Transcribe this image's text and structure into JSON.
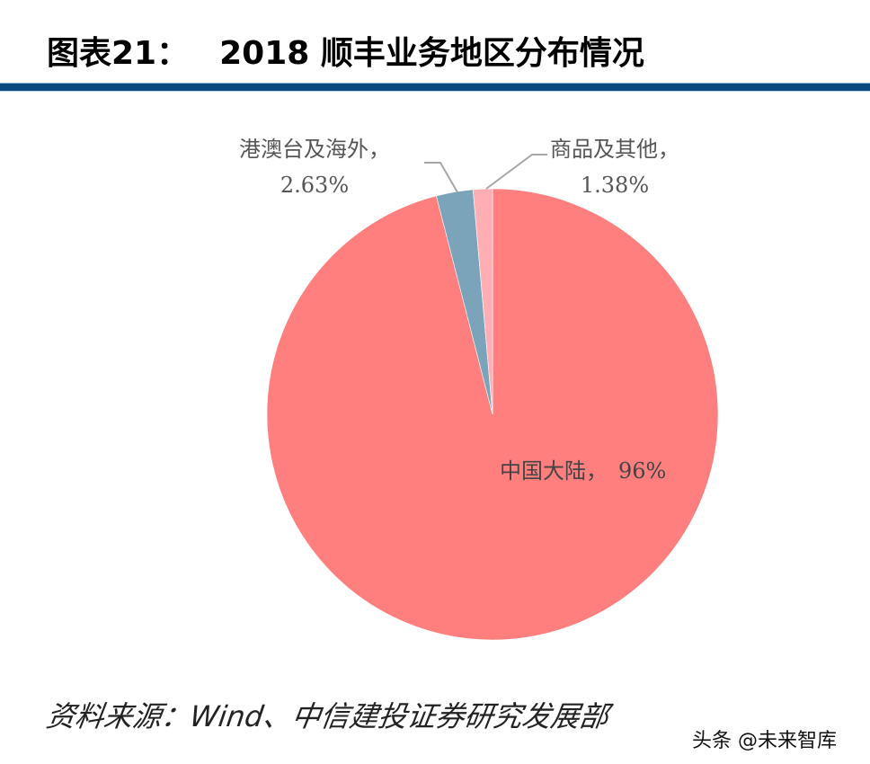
{
  "header": {
    "figure_no": "图表21：",
    "title": "2018 顺丰业务地区分布情况"
  },
  "chart_data": {
    "type": "pie",
    "title": "2018 顺丰业务地区分布情况",
    "categories": [
      "中国大陆",
      "港澳台及海外",
      "商品及其他"
    ],
    "values": [
      96,
      2.63,
      1.38
    ],
    "colors": [
      "#ff7f7f",
      "#7ba3ba",
      "#ffafb3"
    ],
    "labels": {
      "mainland": {
        "name": "中国大陆，",
        "value": "96%"
      },
      "hkmt_overseas": {
        "name": "港澳台及海外，",
        "value": "2.63%"
      },
      "goods_other": {
        "name": "商品及其他，",
        "value": "1.38%"
      }
    },
    "start_angle": "12 o'clock",
    "legend": "none (data labels with leader lines)"
  },
  "footer": {
    "source": "资料来源：Wind、中信建投证券研究发展部",
    "watermark": "头条 @未来智库"
  },
  "colors": {
    "rule": "#0a4a7c",
    "mainland": "#ff7f7f",
    "hkmt": "#7ba3ba",
    "other": "#ffafb3"
  }
}
